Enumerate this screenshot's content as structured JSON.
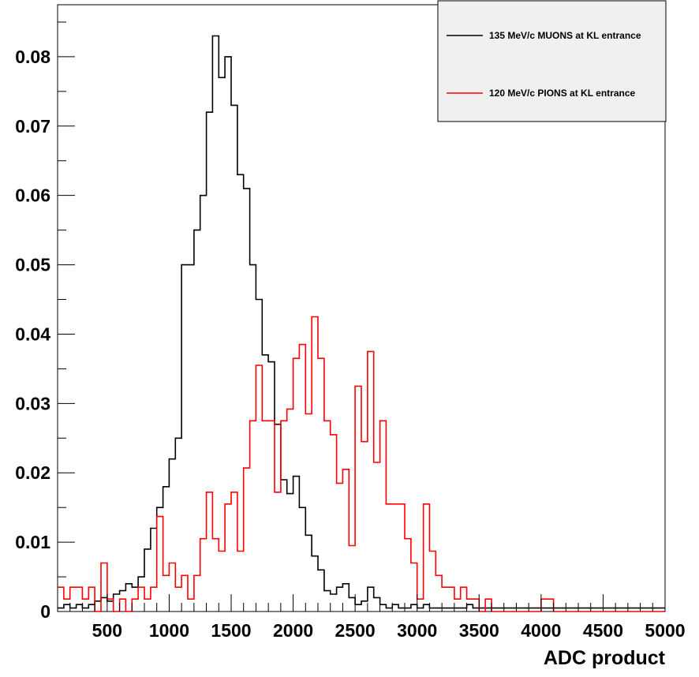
{
  "chart_data": {
    "type": "histogram",
    "xlabel": "ADC product",
    "ylabel": "",
    "xlim": [
      100,
      5000
    ],
    "ylim": [
      0,
      0.0875
    ],
    "bin_start": 100,
    "bin_width": 50,
    "x_ticks": [
      500,
      1000,
      1500,
      2000,
      2500,
      3000,
      3500,
      4000,
      4500,
      5000
    ],
    "y_ticks": [
      0,
      0.01,
      0.02,
      0.03,
      0.04,
      0.05,
      0.06,
      0.07,
      0.08
    ],
    "x_tick_labels": [
      "500",
      "1000",
      "1500",
      "2000",
      "2500",
      "3000",
      "3500",
      "4000",
      "4500",
      "5000"
    ],
    "y_tick_labels": [
      "0",
      "0.01",
      "0.02",
      "0.03",
      "0.04",
      "0.05",
      "0.06",
      "0.07",
      "0.08"
    ],
    "grid": false,
    "legend_position": "top-right",
    "series": [
      {
        "name": "135 MeV/c MUONS at KL entrance",
        "color": "#000000",
        "values": [
          0.0005,
          0.001,
          0.0005,
          0.001,
          0.0005,
          0.001,
          0.0015,
          0.002,
          0.0015,
          0.0025,
          0.003,
          0.004,
          0.0035,
          0.005,
          0.009,
          0.012,
          0.015,
          0.018,
          0.022,
          0.025,
          0.05,
          0.05,
          0.055,
          0.06,
          0.072,
          0.083,
          0.077,
          0.08,
          0.073,
          0.063,
          0.061,
          0.05,
          0.045,
          0.037,
          0.036,
          0.027,
          0.019,
          0.017,
          0.0195,
          0.015,
          0.011,
          0.008,
          0.006,
          0.003,
          0.0025,
          0.0035,
          0.004,
          0.002,
          0.001,
          0.0015,
          0.0035,
          0.002,
          0.001,
          0.0005,
          0.001,
          0.0005,
          0.0005,
          0.001,
          0.0005,
          0.001,
          0.0005,
          0.0005,
          0.0005,
          0.0005,
          0.0005,
          0.0005,
          0.001,
          0.0005,
          0.0005,
          0.0005,
          0.0005,
          0.0005,
          0.0005,
          0.0005,
          0.0005,
          0.0005,
          0.0005,
          0.0005,
          0.0005,
          0.0005,
          0.0005,
          0.0005,
          0.0005,
          0.0005,
          0.0005,
          0.0005,
          0.0005,
          0.0005,
          0.0005,
          0.0005,
          0.0005,
          0.0005,
          0.0005,
          0.0005,
          0.0005,
          0.0005,
          0.0005,
          0.0005
        ]
      },
      {
        "name": "120 MeV/c PIONS at KL entrance",
        "color": "#ff0000",
        "values": [
          0.0035,
          0.0018,
          0.0035,
          0.0035,
          0.0018,
          0.0035,
          0.0,
          0.007,
          0.0018,
          0.0,
          0.0018,
          0.0,
          0.0018,
          0.0035,
          0.0018,
          0.0035,
          0.0137,
          0.0052,
          0.007,
          0.0035,
          0.0052,
          0.0018,
          0.0052,
          0.0105,
          0.0172,
          0.0105,
          0.0087,
          0.0155,
          0.0172,
          0.0087,
          0.0207,
          0.0275,
          0.0355,
          0.0275,
          0.0275,
          0.0172,
          0.0275,
          0.0292,
          0.0365,
          0.0385,
          0.0285,
          0.0425,
          0.0365,
          0.0275,
          0.0255,
          0.0185,
          0.0205,
          0.0095,
          0.0325,
          0.0245,
          0.0375,
          0.0215,
          0.0275,
          0.0155,
          0.0155,
          0.0155,
          0.0105,
          0.007,
          0.0018,
          0.0155,
          0.0087,
          0.0052,
          0.0035,
          0.0035,
          0.0018,
          0.0035,
          0.0018,
          0.0018,
          0.0,
          0.0018,
          0.0,
          0.0,
          0.0,
          0.0,
          0.0,
          0.0,
          0.0,
          0.0,
          0.0018,
          0.0018,
          0.0,
          0.0,
          0.0,
          0.0,
          0.0,
          0.0,
          0.0,
          0.0,
          0.0,
          0.0,
          0.0,
          0.0,
          0.0,
          0.0,
          0.0,
          0.0,
          0.0,
          0.0
        ]
      }
    ]
  }
}
